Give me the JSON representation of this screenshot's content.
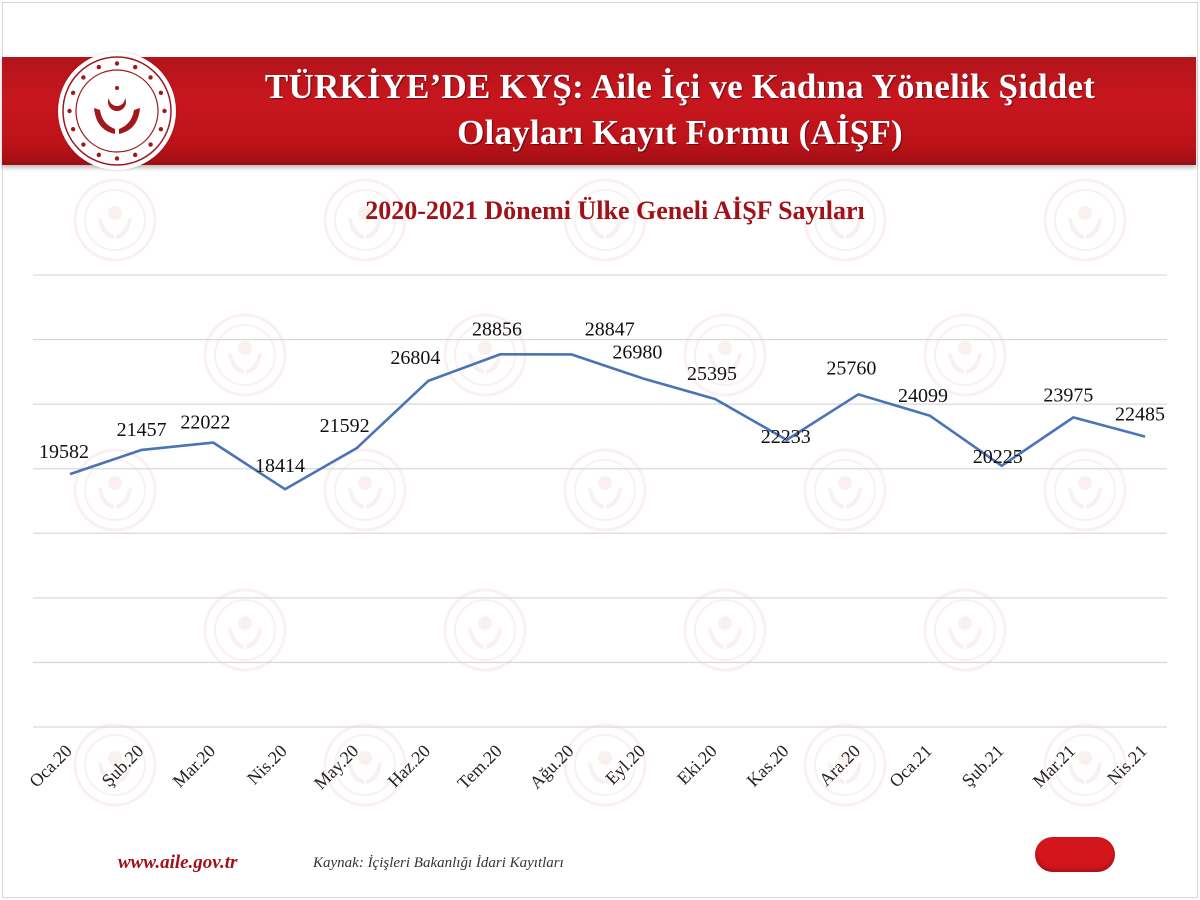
{
  "header": {
    "title_line1": "TÜRKİYE’DE KYŞ: Aile İçi ve Kadına Yönelik Şiddet",
    "title_line2": "Olayları Kayıt Formu (AİŞF)",
    "logo_icon": "ministry-emblem-icon",
    "banner_color": "#c8161e"
  },
  "chart_data": {
    "type": "line",
    "title": "2020-2021 Dönemi Ülke Geneli AİŞF Sayıları",
    "xlabel": "",
    "ylabel": "",
    "categories": [
      "Oca.20",
      "Şub.20",
      "Mar.20",
      "Nis.20",
      "May.20",
      "Haz.20",
      "Tem.20",
      "Ağu.20",
      "Eyl.20",
      "Eki.20",
      "Kas.20",
      "Ara.20",
      "Oca.21",
      "Şub.21",
      "Mar.21",
      "Nis.21"
    ],
    "series": [
      {
        "name": "AİŞF Sayısı",
        "color": "#4a74b5",
        "values": [
          19582,
          21457,
          22022,
          18414,
          21592,
          26804,
          28856,
          28847,
          26980,
          25395,
          22233,
          25760,
          24099,
          20225,
          23975,
          22485
        ]
      }
    ],
    "ylim": [
      0,
      35000
    ],
    "y_gridlines": [
      0,
      5000,
      10000,
      15000,
      20000,
      25000,
      30000,
      35000
    ],
    "grid": true,
    "y_tick_labels_visible": false,
    "data_labels": true,
    "legend": "none",
    "title_color": "#a11218"
  },
  "footer": {
    "url": "www.aile.gov.tr",
    "source": "Kaynak: İçişleri Bakanlığı İdari Kayıtları",
    "url_color": "#a11218"
  }
}
